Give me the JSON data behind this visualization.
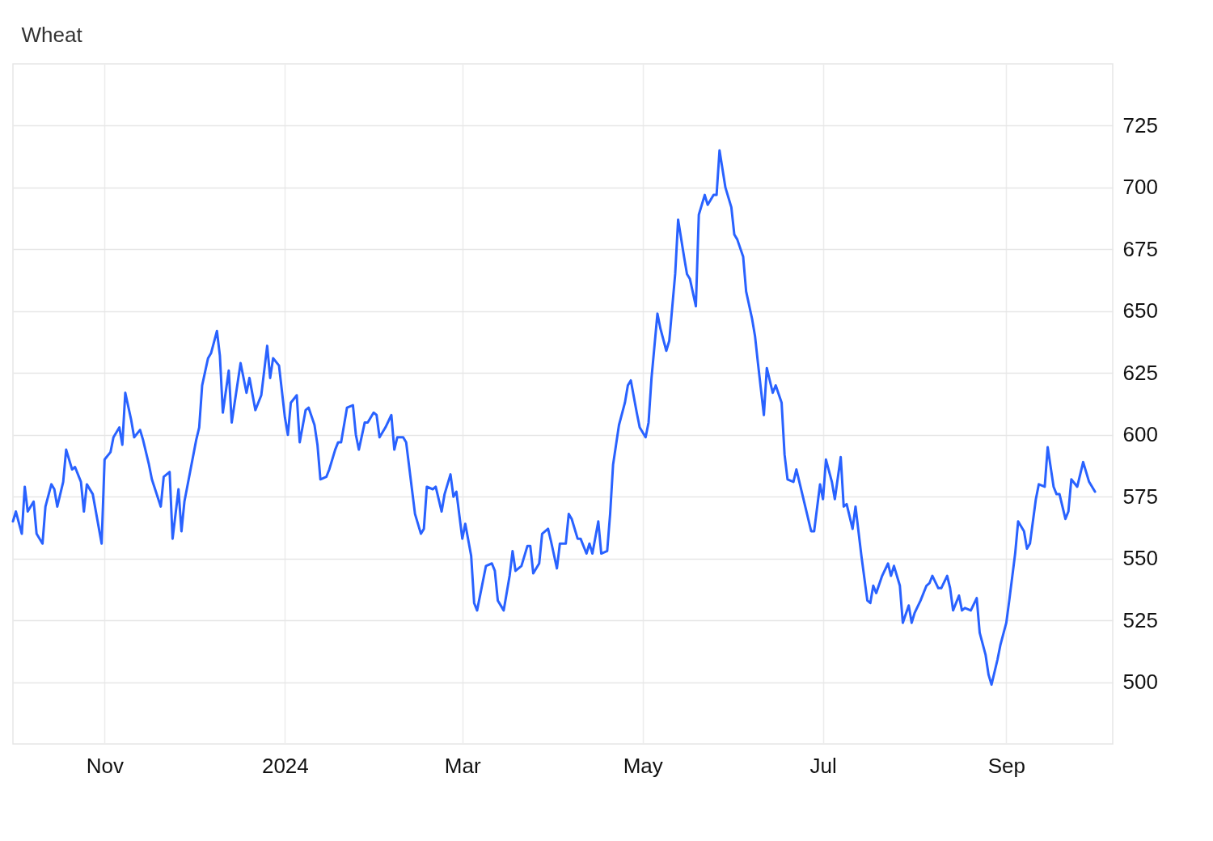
{
  "chart_data": {
    "type": "line",
    "title": "Wheat",
    "x": [
      "2023-10-01",
      "2023-10-02",
      "2023-10-04",
      "2023-10-05",
      "2023-10-06",
      "2023-10-08",
      "2023-10-09",
      "2023-10-11",
      "2023-10-12",
      "2023-10-14",
      "2023-10-15",
      "2023-10-16",
      "2023-10-18",
      "2023-10-19",
      "2023-10-21",
      "2023-10-22",
      "2023-10-24",
      "2023-10-25",
      "2023-10-26",
      "2023-10-28",
      "2023-10-31",
      "2023-11-01",
      "2023-11-03",
      "2023-11-04",
      "2023-11-06",
      "2023-11-07",
      "2023-11-08",
      "2023-11-10",
      "2023-11-11",
      "2023-11-13",
      "2023-11-14",
      "2023-11-16",
      "2023-11-17",
      "2023-11-20",
      "2023-11-21",
      "2023-11-23",
      "2023-11-24",
      "2023-11-26",
      "2023-11-27",
      "2023-11-28",
      "2023-12-02",
      "2023-12-03",
      "2023-12-04",
      "2023-12-06",
      "2023-12-07",
      "2023-12-09",
      "2023-12-10",
      "2023-12-11",
      "2023-12-13",
      "2023-12-14",
      "2023-12-17",
      "2023-12-19",
      "2023-12-20",
      "2023-12-22",
      "2023-12-24",
      "2023-12-26",
      "2023-12-27",
      "2023-12-28",
      "2023-12-30",
      "2024-01-01",
      "2024-01-02",
      "2024-01-03",
      "2024-01-05",
      "2024-01-06",
      "2024-01-08",
      "2024-01-09",
      "2024-01-11",
      "2024-01-12",
      "2024-01-13",
      "2024-01-15",
      "2024-01-16",
      "2024-01-18",
      "2024-01-19",
      "2024-01-20",
      "2024-01-22",
      "2024-01-24",
      "2024-01-25",
      "2024-01-26",
      "2024-01-28",
      "2024-01-29",
      "2024-01-31",
      "2024-02-01",
      "2024-02-02",
      "2024-02-04",
      "2024-02-06",
      "2024-02-07",
      "2024-02-08",
      "2024-02-10",
      "2024-02-11",
      "2024-02-14",
      "2024-02-16",
      "2024-02-17",
      "2024-02-18",
      "2024-02-20",
      "2024-02-21",
      "2024-02-23",
      "2024-02-24",
      "2024-02-26",
      "2024-02-27",
      "2024-02-28",
      "2024-03-01",
      "2024-03-02",
      "2024-03-04",
      "2024-03-05",
      "2024-03-06",
      "2024-03-09",
      "2024-03-11",
      "2024-03-12",
      "2024-03-13",
      "2024-03-15",
      "2024-03-17",
      "2024-03-18",
      "2024-03-19",
      "2024-03-21",
      "2024-03-23",
      "2024-03-24",
      "2024-03-25",
      "2024-03-27",
      "2024-03-28",
      "2024-03-30",
      "2024-03-31",
      "2024-04-02",
      "2024-04-03",
      "2024-04-05",
      "2024-04-06",
      "2024-04-07",
      "2024-04-09",
      "2024-04-10",
      "2024-04-12",
      "2024-04-13",
      "2024-04-14",
      "2024-04-16",
      "2024-04-17",
      "2024-04-19",
      "2024-04-20",
      "2024-04-21",
      "2024-04-23",
      "2024-04-25",
      "2024-04-26",
      "2024-04-27",
      "2024-04-29",
      "2024-04-30",
      "2024-05-02",
      "2024-05-03",
      "2024-05-04",
      "2024-05-06",
      "2024-05-07",
      "2024-05-09",
      "2024-05-10",
      "2024-05-12",
      "2024-05-13",
      "2024-05-15",
      "2024-05-16",
      "2024-05-17",
      "2024-05-19",
      "2024-05-20",
      "2024-05-22",
      "2024-05-23",
      "2024-05-25",
      "2024-05-26",
      "2024-05-27",
      "2024-05-29",
      "2024-05-31",
      "2024-06-01",
      "2024-06-02",
      "2024-06-04",
      "2024-06-05",
      "2024-06-07",
      "2024-06-08",
      "2024-06-09",
      "2024-06-11",
      "2024-06-12",
      "2024-06-14",
      "2024-06-15",
      "2024-06-17",
      "2024-06-18",
      "2024-06-19",
      "2024-06-21",
      "2024-06-22",
      "2024-06-24",
      "2024-06-25",
      "2024-06-27",
      "2024-06-28",
      "2024-06-30",
      "2024-07-01",
      "2024-07-02",
      "2024-07-04",
      "2024-07-05",
      "2024-07-07",
      "2024-07-08",
      "2024-07-09",
      "2024-07-11",
      "2024-07-12",
      "2024-07-14",
      "2024-07-16",
      "2024-07-17",
      "2024-07-18",
      "2024-07-19",
      "2024-07-21",
      "2024-07-23",
      "2024-07-24",
      "2024-07-25",
      "2024-07-27",
      "2024-07-28",
      "2024-07-30",
      "2024-07-31",
      "2024-08-01",
      "2024-08-03",
      "2024-08-05",
      "2024-08-06",
      "2024-08-07",
      "2024-08-09",
      "2024-08-10",
      "2024-08-12",
      "2024-08-13",
      "2024-08-14",
      "2024-08-16",
      "2024-08-17",
      "2024-08-18",
      "2024-08-20",
      "2024-08-22",
      "2024-08-23",
      "2024-08-25",
      "2024-08-26",
      "2024-08-27",
      "2024-08-29",
      "2024-08-30",
      "2024-09-01",
      "2024-09-02",
      "2024-09-04",
      "2024-09-05",
      "2024-09-07",
      "2024-09-08",
      "2024-09-09",
      "2024-09-11",
      "2024-09-12",
      "2024-09-14",
      "2024-09-15",
      "2024-09-17",
      "2024-09-18",
      "2024-09-19",
      "2024-09-21",
      "2024-09-22",
      "2024-09-23",
      "2024-09-25",
      "2024-09-27",
      "2024-09-28",
      "2024-09-29",
      "2024-10-01"
    ],
    "series": [
      {
        "color": "#2962ff",
        "values": [
          565,
          569,
          560,
          579,
          569,
          573,
          560,
          556,
          571,
          580,
          578,
          571,
          581,
          594,
          586,
          587,
          581,
          569,
          580,
          576,
          556,
          590,
          593,
          599,
          603,
          596,
          617,
          606,
          599,
          602,
          598,
          588,
          582,
          571,
          583,
          585,
          558,
          578,
          561,
          573,
          598,
          603,
          620,
          631,
          633,
          642,
          632,
          609,
          626,
          605,
          629,
          617,
          623,
          610,
          616,
          636,
          623,
          631,
          628,
          607,
          600,
          613,
          616,
          597,
          610,
          611,
          604,
          596,
          582,
          583,
          586,
          594,
          597,
          597,
          611,
          612,
          600,
          594,
          605,
          605,
          609,
          608,
          599,
          603,
          608,
          594,
          599,
          599,
          597,
          568,
          560,
          562,
          579,
          578,
          579,
          569,
          576,
          584,
          575,
          577,
          558,
          564,
          551,
          532,
          529,
          547,
          548,
          545,
          533,
          529,
          543,
          553,
          545,
          547,
          555,
          555,
          544,
          548,
          560,
          562,
          557,
          546,
          556,
          556,
          568,
          566,
          558,
          558,
          552,
          556,
          552,
          565,
          552,
          553,
          568,
          588,
          604,
          613,
          620,
          622,
          609,
          603,
          599,
          605,
          623,
          649,
          643,
          634,
          638,
          665,
          687,
          672,
          665,
          663,
          652,
          689,
          697,
          693,
          697,
          697,
          715,
          700,
          692,
          681,
          679,
          672,
          658,
          647,
          640,
          629,
          608,
          627,
          617,
          620,
          613,
          592,
          582,
          581,
          586,
          576,
          571,
          561,
          561,
          580,
          574,
          590,
          581,
          574,
          591,
          571,
          572,
          562,
          571,
          551,
          533,
          532,
          539,
          536,
          543,
          548,
          543,
          547,
          539,
          524,
          531,
          524,
          528,
          533,
          539,
          540,
          543,
          538,
          538,
          543,
          538,
          529,
          535,
          529,
          530,
          529,
          534,
          520,
          511,
          503,
          499,
          509,
          515,
          524,
          533,
          552,
          565,
          561,
          554,
          556,
          574,
          580,
          579,
          595,
          579,
          576,
          576,
          566,
          569,
          582,
          579,
          589,
          585,
          581,
          577
        ]
      }
    ],
    "xlim": [
      "2023-10-01",
      "2024-10-07"
    ],
    "xticks": [
      {
        "value": "2023-11-01",
        "label": "Nov"
      },
      {
        "value": "2024-01-01",
        "label": "2024"
      },
      {
        "value": "2024-03-01",
        "label": "Mar"
      },
      {
        "value": "2024-05-01",
        "label": "May"
      },
      {
        "value": "2024-07-01",
        "label": "Jul"
      },
      {
        "value": "2024-09-01",
        "label": "Sep"
      }
    ],
    "ylim": [
      475,
      750
    ],
    "yticks": [
      500,
      525,
      550,
      575,
      600,
      625,
      650,
      675,
      700,
      725
    ],
    "grid": true,
    "marker": "none",
    "line_style": "solid"
  }
}
